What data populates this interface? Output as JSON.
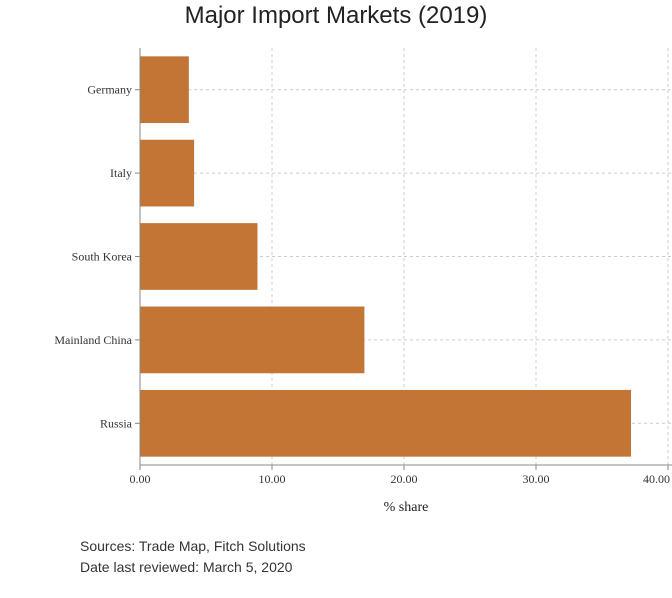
{
  "chart_data": {
    "type": "bar",
    "orientation": "horizontal",
    "title": "Major Import Markets (2019)",
    "xlabel": "% share",
    "ylabel": "",
    "categories": [
      "Germany",
      "Italy",
      "South Korea",
      "Mainland China",
      "Russia"
    ],
    "values": [
      3.7,
      4.1,
      8.9,
      17.0,
      37.2
    ],
    "xlim": [
      0,
      40
    ],
    "xticks": [
      0,
      10,
      20,
      30,
      40
    ],
    "xtick_labels": [
      "0.00",
      "10.00",
      "20.00",
      "30.00",
      "40.00"
    ],
    "bar_color": "#c27535",
    "grid": true
  },
  "footer": {
    "sources": "Sources: Trade Map, Fitch Solutions",
    "reviewed": "Date last reviewed: March 5, 2020"
  }
}
